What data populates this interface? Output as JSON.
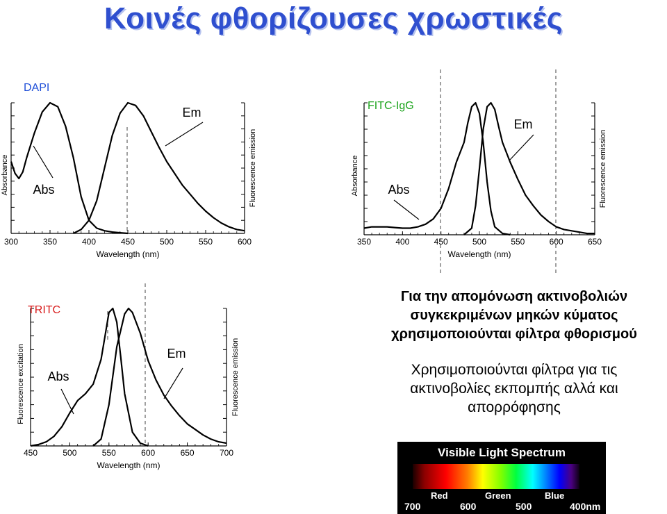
{
  "title": "Κοινές φθορίζουσες χρωστικές",
  "notes": [
    {
      "lines": [
        "Για την απομόνωση ακτινοβολιών",
        "συγκεκριμένων μηκών κύματος",
        "χρησιμοποιούνται φίλτρα φθορισμού"
      ]
    },
    {
      "lines": [
        "Χρησιμοποιούνται φίλτρα για τις",
        "ακτινοβολίες εκπομπής αλλά και",
        "απορρόφησης"
      ]
    }
  ],
  "spectrum": {
    "title": "Visible Light Spectrum",
    "band_labels": [
      "Red",
      "Green",
      "Blue"
    ],
    "ticks": [
      "700",
      "600",
      "500",
      "400nm"
    ]
  },
  "colors": {
    "title": "#2f4fcf",
    "dapi": "#1f4fd8",
    "fitc": "#1aa31a",
    "tritc": "#d81b1b",
    "curve": "#000000",
    "axis": "#000000",
    "dashed": "#6e6e6e"
  },
  "chart_data": [
    {
      "type": "line",
      "name_label": "DAPI",
      "xlabel": "Wavelength (nm)",
      "ylabel_left": "Absorbance",
      "ylabel_right": "Fluorescence emission",
      "xlim": [
        300,
        600
      ],
      "ylim": [
        0,
        1
      ],
      "xticks": [
        300,
        350,
        400,
        450,
        500,
        550,
        600
      ],
      "marker_x": 450,
      "labels": {
        "abs": "Abs",
        "em": "Em"
      },
      "series": [
        {
          "name": "Abs",
          "x": [
            300,
            305,
            310,
            315,
            320,
            330,
            340,
            350,
            360,
            370,
            380,
            390,
            400,
            410,
            420,
            430,
            440,
            450
          ],
          "y": [
            0.55,
            0.46,
            0.42,
            0.47,
            0.58,
            0.77,
            0.93,
            1.0,
            0.97,
            0.82,
            0.58,
            0.28,
            0.1,
            0.04,
            0.02,
            0.01,
            0.005,
            0.0
          ]
        },
        {
          "name": "Em",
          "x": [
            380,
            390,
            400,
            410,
            420,
            430,
            440,
            450,
            460,
            470,
            480,
            490,
            500,
            510,
            520,
            530,
            540,
            550,
            560,
            570,
            580,
            590,
            600
          ],
          "y": [
            0.0,
            0.03,
            0.1,
            0.25,
            0.5,
            0.75,
            0.92,
            1.0,
            0.98,
            0.9,
            0.78,
            0.66,
            0.55,
            0.46,
            0.37,
            0.3,
            0.23,
            0.17,
            0.12,
            0.08,
            0.05,
            0.03,
            0.02
          ]
        }
      ]
    },
    {
      "type": "line",
      "name_label": "FITC-IgG",
      "xlabel": "Wavelength (nm)",
      "ylabel_left": "Absorbance",
      "ylabel_right": "Fluorescence emission",
      "xlim": [
        350,
        650
      ],
      "ylim": [
        0,
        1
      ],
      "xticks": [
        350,
        400,
        450,
        500,
        550,
        600,
        650
      ],
      "markers_x": [
        450,
        600
      ],
      "labels": {
        "abs": "Abs",
        "em": "Em"
      },
      "series": [
        {
          "name": "Abs",
          "x": [
            350,
            360,
            370,
            380,
            390,
            400,
            410,
            420,
            430,
            440,
            450,
            460,
            470,
            480,
            485,
            490,
            495,
            500,
            505,
            510,
            515,
            520,
            530,
            540
          ],
          "y": [
            0.05,
            0.06,
            0.06,
            0.06,
            0.055,
            0.05,
            0.05,
            0.06,
            0.08,
            0.12,
            0.2,
            0.35,
            0.55,
            0.7,
            0.85,
            0.97,
            1.0,
            0.92,
            0.7,
            0.4,
            0.18,
            0.06,
            0.01,
            0.0
          ]
        },
        {
          "name": "Em",
          "x": [
            480,
            490,
            495,
            500,
            505,
            510,
            515,
            520,
            525,
            530,
            540,
            550,
            560,
            570,
            580,
            590,
            600,
            610,
            620,
            630,
            640,
            650
          ],
          "y": [
            0.0,
            0.05,
            0.22,
            0.5,
            0.8,
            0.97,
            1.0,
            0.95,
            0.82,
            0.7,
            0.55,
            0.42,
            0.3,
            0.22,
            0.15,
            0.1,
            0.06,
            0.04,
            0.03,
            0.02,
            0.01,
            0.01
          ]
        }
      ]
    },
    {
      "type": "line",
      "name_label": "TRITC",
      "xlabel": "Wavelength (nm)",
      "ylabel_left": "Fluorescence excitation",
      "ylabel_right": "Fluorescence emission",
      "xlim": [
        450,
        700
      ],
      "ylim": [
        0,
        1
      ],
      "xticks": [
        450,
        500,
        550,
        600,
        650,
        700
      ],
      "markers_x": [
        550,
        600
      ],
      "labels": {
        "abs": "Abs",
        "em": "Em"
      },
      "series": [
        {
          "name": "Abs",
          "x": [
            450,
            460,
            470,
            480,
            490,
            500,
            510,
            520,
            530,
            540,
            545,
            550,
            555,
            560,
            565,
            570,
            580,
            590,
            600
          ],
          "y": [
            0.0,
            0.01,
            0.03,
            0.07,
            0.14,
            0.24,
            0.33,
            0.38,
            0.45,
            0.63,
            0.8,
            0.97,
            1.0,
            0.9,
            0.65,
            0.38,
            0.1,
            0.02,
            0.0
          ]
        },
        {
          "name": "Em",
          "x": [
            530,
            540,
            550,
            560,
            570,
            575,
            580,
            590,
            600,
            610,
            620,
            630,
            640,
            650,
            660,
            670,
            680,
            690,
            700
          ],
          "y": [
            0.0,
            0.05,
            0.3,
            0.72,
            0.96,
            1.0,
            0.97,
            0.82,
            0.62,
            0.48,
            0.37,
            0.29,
            0.22,
            0.16,
            0.12,
            0.08,
            0.05,
            0.03,
            0.02
          ]
        }
      ]
    }
  ]
}
